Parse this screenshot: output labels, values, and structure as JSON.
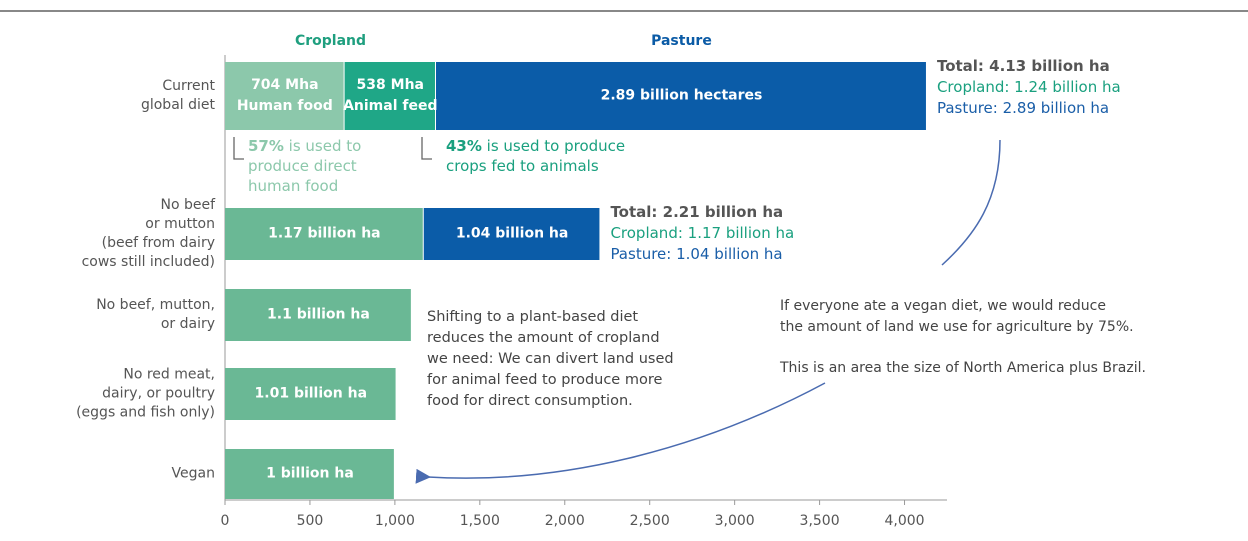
{
  "chart_data": {
    "type": "stacked_barh",
    "categories": [
      "Current\nglobal diet",
      "No beef\nor mutton\n(beef from dairy\ncows still included)",
      "No beef, mutton,\nor dairy",
      "No red meat,\ndairy, or poultry\n(eggs and fish only)",
      "Vegan"
    ],
    "series": [
      {
        "name": "Cropland",
        "color": "#6ab895",
        "colors": [
          "#8cc8ab",
          "#6ab895",
          "#6ab895",
          "#6ab895",
          "#6ab895"
        ],
        "values": [
          704,
          1170,
          1100,
          1010,
          1000
        ],
        "value_labels": [
          "704 Mha\nHuman food",
          "1.17 billion ha",
          "1.1 billion ha",
          "1.01 billion ha",
          "1 billion ha"
        ]
      },
      {
        "color": "#1fa787",
        "values": [
          538,
          null,
          null,
          null,
          null
        ],
        "value_labels": [
          "538 Mha\nAnimal feed",
          null,
          null,
          null,
          null
        ]
      },
      {
        "name": "Pasture",
        "color": "#0b5ca8",
        "values": [
          2890,
          1040,
          null,
          null,
          null
        ],
        "value_labels": [
          "2.89 billion hectares",
          "1.04 billion ha",
          null,
          null,
          null
        ]
      }
    ],
    "xlim": [
      0,
      4250
    ],
    "xticks": [
      0,
      500,
      {
        "value": 1000,
        "label": "1,000"
      },
      {
        "value": 1500,
        "label": "1,500"
      },
      {
        "value": 2000,
        "label": "2,000"
      },
      {
        "value": 2500,
        "label": "2,500"
      },
      {
        "value": 3000,
        "label": "3,000"
      },
      {
        "value": 3500,
        "label": "3,500"
      },
      {
        "value": 4000,
        "label": "4,000"
      }
    ],
    "totals": [
      {
        "total": "Total: 4.13 billion ha",
        "cropland": "Cropland: 1.24 billion ha",
        "pasture": "Pasture: 2.89 billion ha"
      },
      {
        "total": "Total: 2.21 billion ha",
        "cropland": "Cropland: 1.17 billion ha",
        "pasture": "Pasture: 1.04 billion ha"
      }
    ],
    "notes": [
      {
        "bold": "57%",
        "text": " is used to\nproduce direct\nhuman food"
      },
      {
        "bold": "43%",
        "text": " is used to produce\ncrops fed to animals"
      }
    ],
    "middle_text": "Shifting to a plant-based diet\nreduces the amount of cropland\nwe need: We can divert land used\nfor animal feed to produce more\nfood for direct consumption.",
    "callout": [
      "If everyone ate a vegan diet, we would reduce\nthe amount of land we use for agriculture by 75%.",
      "This is an area the size of North America plus Brazil."
    ]
  }
}
